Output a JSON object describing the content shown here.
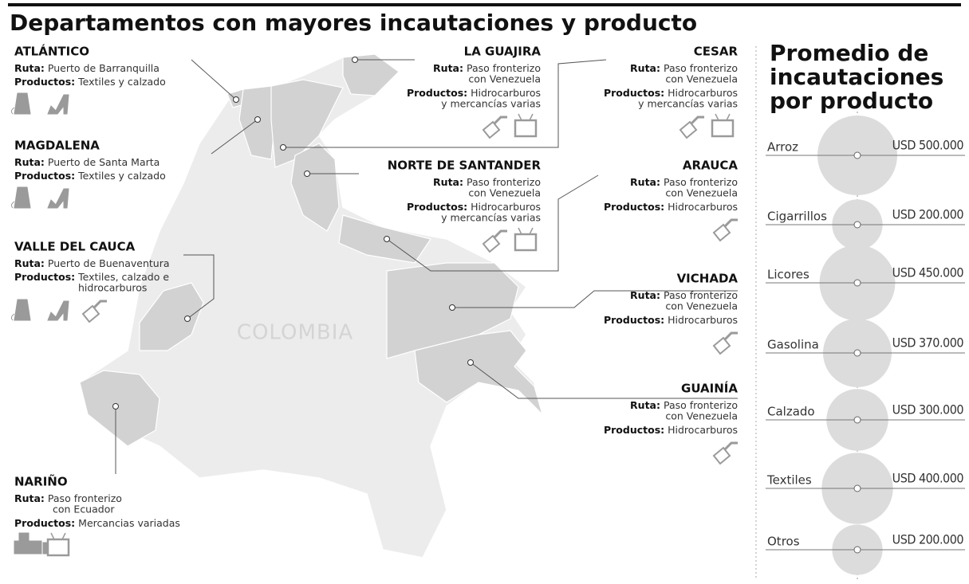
{
  "title": "Departamentos con mayores incautaciones y producto",
  "map_label": "COLOMBIA",
  "departments": [
    {
      "name": "ATLÁNTICO",
      "route_label": "Ruta:",
      "route": [
        "Puerto de Barranquilla"
      ],
      "products_label": "Productos:",
      "products": [
        "Textiles y calzado"
      ]
    },
    {
      "name": "MAGDALENA",
      "route_label": "Ruta:",
      "route": [
        "Puerto de Santa Marta"
      ],
      "products_label": "Productos:",
      "products": [
        "Textiles y calzado"
      ]
    },
    {
      "name": "VALLE DEL CAUCA",
      "route_label": "Ruta:",
      "route": [
        "Puerto de Buenaventura"
      ],
      "products_label": "Productos:",
      "products": [
        "Textiles, calzado e",
        "hidrocarburos"
      ]
    },
    {
      "name": "NARIÑO",
      "route_label": "Ruta:",
      "route": [
        "Paso fronterizo",
        "con Ecuador"
      ],
      "products_label": "Productos:",
      "products": [
        "Mercancias variadas"
      ]
    },
    {
      "name": "LA GUAJIRA",
      "route_label": "Ruta:",
      "route": [
        "Paso fronterizo",
        "con Venezuela"
      ],
      "products_label": "Productos:",
      "products": [
        "Hidrocarburos",
        "y mercancías varias"
      ]
    },
    {
      "name": "CESAR",
      "route_label": "Ruta:",
      "route": [
        "Paso fronterizo",
        "con Venezuela"
      ],
      "products_label": "Productos:",
      "products": [
        "Hidrocarburos",
        "y mercancías varias"
      ]
    },
    {
      "name": "NORTE DE SANTANDER",
      "route_label": "Ruta:",
      "route": [
        "Paso fronterizo",
        "con Venezuela"
      ],
      "products_label": "Productos:",
      "products": [
        "Hidrocarburos",
        "y mercancías varias"
      ]
    },
    {
      "name": "ARAUCA",
      "route_label": "Ruta:",
      "route": [
        "Paso fronterizo",
        "con Venezuela"
      ],
      "products_label": "Productos:",
      "products": [
        "Hidrocarburos"
      ]
    },
    {
      "name": "VICHADA",
      "route_label": "Ruta:",
      "route": [
        "Paso fronterizo",
        "con Venezuela"
      ],
      "products_label": "Productos:",
      "products": [
        "Hidrocarburos"
      ]
    },
    {
      "name": "GUAINÍA",
      "route_label": "Ruta:",
      "route": [
        "Paso fronterizo",
        "con Venezuela"
      ],
      "products_label": "Productos:",
      "products": [
        "Hidrocarburos"
      ]
    }
  ],
  "averages": {
    "title": [
      "Promedio de",
      "incautaciones",
      "por producto"
    ],
    "items": [
      {
        "product": "Arroz",
        "value": 500000,
        "label": "USD 500.000"
      },
      {
        "product": "Cigarrillos",
        "value": 200000,
        "label": "USD 200.000"
      },
      {
        "product": "Licores",
        "value": 450000,
        "label": "USD 450.000"
      },
      {
        "product": "Gasolina",
        "value": 370000,
        "label": "USD 370.000"
      },
      {
        "product": "Calzado",
        "value": 300000,
        "label": "USD 300.000"
      },
      {
        "product": "Textiles",
        "value": 400000,
        "label": "USD 400.000"
      },
      {
        "product": "Otros",
        "value": 200000,
        "label": "USD 200.000"
      }
    ]
  }
}
